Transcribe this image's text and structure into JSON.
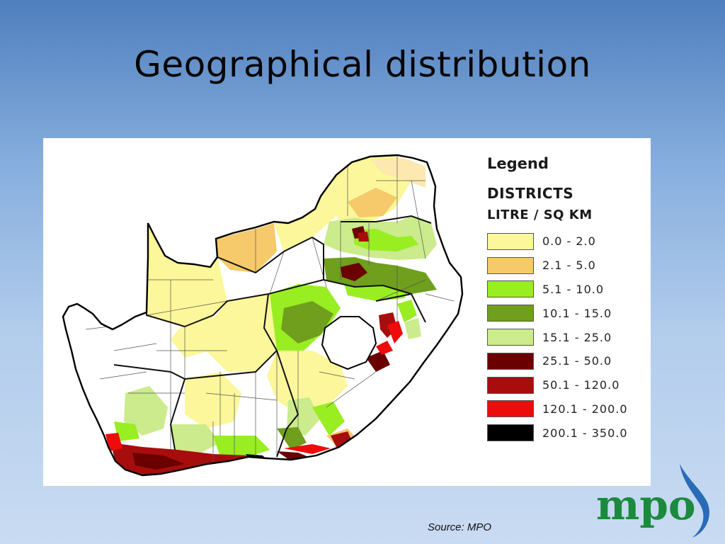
{
  "slide": {
    "title": "Geographical distribution",
    "source": "Source: MPO"
  },
  "legend": {
    "title": "Legend",
    "subtitle1": "DISTRICTS",
    "subtitle2": "LITRE / SQ KM",
    "classes": [
      {
        "range": "0.0 - 2.0",
        "color": "#fbf79a"
      },
      {
        "range": "2.1 - 5.0",
        "color": "#f6c96a"
      },
      {
        "range": "5.1 - 10.0",
        "color": "#99ee22"
      },
      {
        "range": "10.1 - 15.0",
        "color": "#6f9f1c"
      },
      {
        "range": "15.1 - 25.0",
        "color": "#cbeb8c"
      },
      {
        "range": "25.1 - 50.0",
        "color": "#6a0000"
      },
      {
        "range": "50.1 - 120.0",
        "color": "#a80d0d"
      },
      {
        "range": "120.1 - 200.0",
        "color": "#ee0b0b"
      },
      {
        "range": "200.1 - 350.0",
        "color": "#000000"
      }
    ]
  },
  "logo": {
    "text": "mpo",
    "icon": "water-drop-swoosh-icon",
    "text_color": "#1a8a3c",
    "accent_color": "#2a6bb8"
  }
}
